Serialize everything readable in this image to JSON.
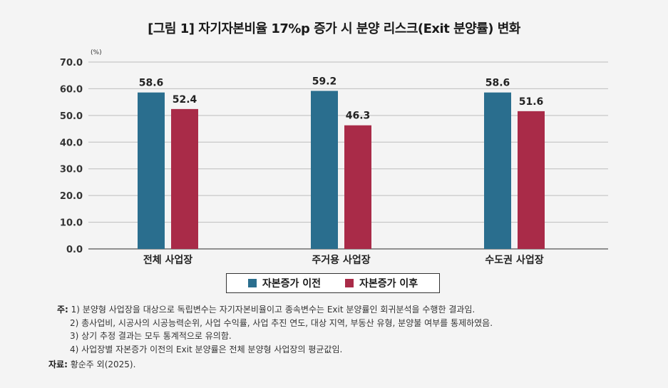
{
  "title": "[그림 1] 자기자본비율 17%p 증가 시 분양 리스크(Exit 분양률) 변화",
  "chart_data": {
    "type": "bar",
    "unit_label": "(%)",
    "categories": [
      "전체 사업장",
      "주거용 사업장",
      "수도권 사업장"
    ],
    "series": [
      {
        "name": "자본증가 이전",
        "values": [
          58.6,
          59.2,
          58.6
        ],
        "color": "#2a6e8e"
      },
      {
        "name": "자본증가 이후",
        "values": [
          52.4,
          46.3,
          51.6
        ],
        "color": "#a92b48"
      }
    ],
    "ylim": [
      0,
      70
    ],
    "yticks": [
      "0.0",
      "10.0",
      "20.0",
      "30.0",
      "40.0",
      "50.0",
      "60.0",
      "70.0"
    ],
    "data_labels": [
      [
        "58.6",
        "59.2",
        "58.6"
      ],
      [
        "52.4",
        "46.3",
        "51.6"
      ]
    ],
    "grid": true,
    "legend": "bottom"
  },
  "notes": {
    "prefix": "주:",
    "items": [
      "1) 분양형 사업장을 대상으로 독립변수는 자기자본비율이고 종속변수는 Exit 분양률인 회귀분석을 수행한 결과임.",
      "2) 총사업비, 시공사의 시공능력순위, 사업 수익률, 사업 추진 연도, 대상 지역, 부동산 유형, 분양불 여부를 통제하였음.",
      "3) 상기 추정 결과는 모두 통계적으로 유의함.",
      "4) 사업장별 자본증가 이전의 Exit 분양률은 전체 분양형 사업장의 평균값임."
    ]
  },
  "source": {
    "label": "자료:",
    "text": "황순주 외(2025)."
  }
}
